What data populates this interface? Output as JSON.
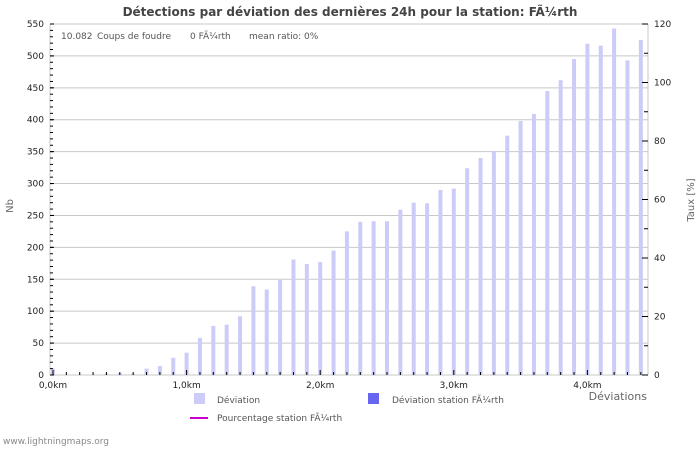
{
  "chart_data": {
    "type": "bar",
    "title": "Détections par déviation des dernières 24h pour la station: FÃ¼rth",
    "xlabel": "Déviations",
    "ylabel": "Nb",
    "ylabel_right": "Taux [%]",
    "ylim": [
      0,
      550
    ],
    "ylim_right": [
      0,
      120
    ],
    "yticks": [
      0,
      50,
      100,
      150,
      200,
      250,
      300,
      350,
      400,
      450,
      500,
      550
    ],
    "yticks_right": [
      0,
      20,
      40,
      60,
      80,
      100,
      120
    ],
    "xticks": [
      "0,0km",
      "1,0km",
      "2,0km",
      "3,0km",
      "4,0km"
    ],
    "grid": true,
    "legend_position": "bottom",
    "bin_width_km": 0.1,
    "categories": [
      "0.0",
      "0.1",
      "0.2",
      "0.3",
      "0.4",
      "0.5",
      "0.6",
      "0.7",
      "0.8",
      "0.9",
      "1.0",
      "1.1",
      "1.2",
      "1.3",
      "1.4",
      "1.5",
      "1.6",
      "1.7",
      "1.8",
      "1.9",
      "2.0",
      "2.1",
      "2.2",
      "2.3",
      "2.4",
      "2.5",
      "2.6",
      "2.7",
      "2.8",
      "2.9",
      "3.0",
      "3.1",
      "3.2",
      "3.3",
      "3.4",
      "3.5",
      "3.6",
      "3.7",
      "3.8",
      "3.9",
      "4.0",
      "4.1",
      "4.2",
      "4.3",
      "4.4"
    ],
    "series": [
      {
        "name": "Déviation",
        "color": "#ccccf8",
        "values": [
          10,
          1,
          1,
          1,
          2,
          3,
          2,
          10,
          14,
          27,
          35,
          58,
          77,
          79,
          92,
          139,
          134,
          149,
          181,
          174,
          177,
          195,
          225,
          240,
          241,
          241,
          259,
          270,
          269,
          290,
          292,
          324,
          340,
          351,
          375,
          398,
          409,
          445,
          462,
          495,
          519,
          516,
          543,
          493,
          525
        ]
      },
      {
        "name": "Déviation station FÃ¼rth",
        "color": "#6666f0",
        "values": [
          0,
          0,
          0,
          0,
          0,
          0,
          0,
          0,
          0,
          0,
          0,
          0,
          0,
          0,
          0,
          0,
          0,
          0,
          0,
          0,
          0,
          0,
          0,
          0,
          0,
          0,
          0,
          0,
          0,
          0,
          0,
          0,
          0,
          0,
          0,
          0,
          0,
          0,
          0,
          0,
          0,
          0,
          0,
          0,
          0
        ]
      },
      {
        "name": "Pourcentage station FÃ¼rth",
        "color": "#cc00cc",
        "type": "line",
        "values": []
      }
    ]
  },
  "info": {
    "count": "10.082",
    "count_label": "Coups de foudre",
    "station_count": "0 FÃ¼rth",
    "mean_ratio": "mean ratio: 0%"
  },
  "legend": {
    "items": [
      {
        "label": "Déviation",
        "color": "#ccccf8"
      },
      {
        "label": "Déviation station FÃ¼rth",
        "color": "#6666f0"
      },
      {
        "label": "Pourcentage station FÃ¼rth",
        "color": "#cc00cc"
      }
    ]
  },
  "footer": "www.lightningmaps.org"
}
